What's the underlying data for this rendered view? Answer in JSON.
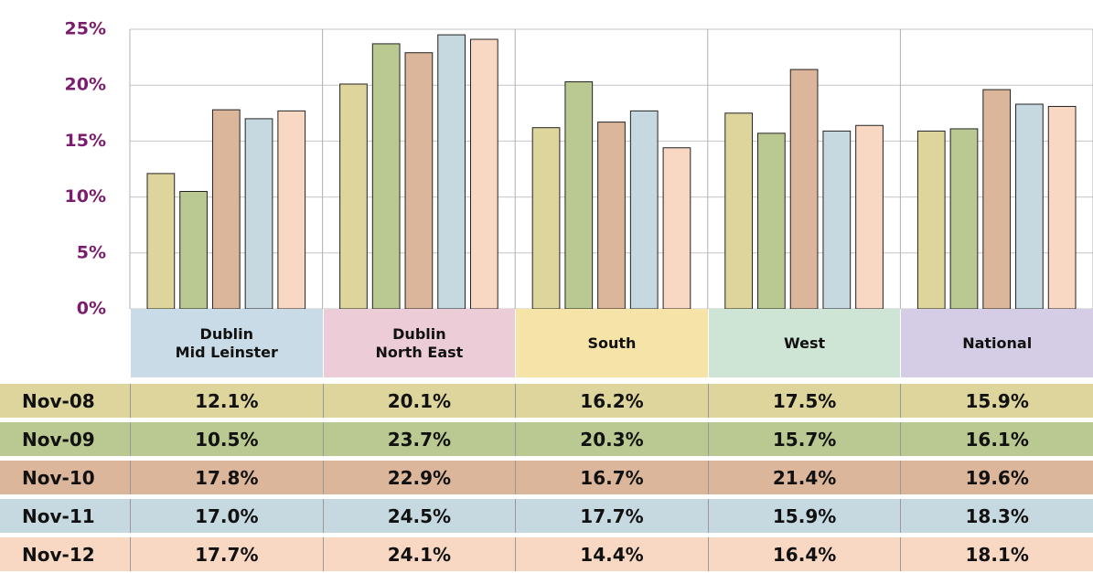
{
  "chart_data": {
    "type": "bar",
    "categories": [
      "Dublin\nMid Leinster",
      "Dublin\nNorth East",
      "South",
      "West",
      "National"
    ],
    "category_colors": [
      "#c9dbe6",
      "#ecccd6",
      "#f5e3a8",
      "#cee4d4",
      "#d5cde5"
    ],
    "series": [
      {
        "name": "Nov-08",
        "color": "#ddd59b",
        "values": [
          12.1,
          20.1,
          16.2,
          17.5,
          15.9
        ],
        "value_labels": [
          "12.1%",
          "20.1%",
          "16.2%",
          "17.5%",
          "15.9%"
        ]
      },
      {
        "name": "Nov-09",
        "color": "#bac991",
        "values": [
          10.5,
          23.7,
          20.3,
          15.7,
          16.1
        ],
        "value_labels": [
          "10.5%",
          "23.7%",
          "20.3%",
          "15.7%",
          "16.1%"
        ]
      },
      {
        "name": "Nov-10",
        "color": "#dcb69b",
        "values": [
          17.8,
          22.9,
          16.7,
          21.4,
          19.6
        ],
        "value_labels": [
          "17.8%",
          "22.9%",
          "16.7%",
          "21.4%",
          "19.6%"
        ]
      },
      {
        "name": "Nov-11",
        "color": "#c6d9e1",
        "values": [
          17.0,
          24.5,
          17.7,
          15.9,
          18.3
        ],
        "value_labels": [
          "17.0%",
          "24.5%",
          "17.7%",
          "15.9%",
          "18.3%"
        ]
      },
      {
        "name": "Nov-12",
        "color": "#f8d8c3",
        "values": [
          17.7,
          24.1,
          14.4,
          16.4,
          18.1
        ],
        "value_labels": [
          "17.7%",
          "24.1%",
          "14.4%",
          "16.4%",
          "18.1%"
        ]
      }
    ],
    "ylim": [
      0,
      25
    ],
    "yticks": [
      {
        "value": 0,
        "label": "0%"
      },
      {
        "value": 5,
        "label": "5%"
      },
      {
        "value": 10,
        "label": "10%"
      },
      {
        "value": 15,
        "label": "15%"
      },
      {
        "value": 20,
        "label": "20%"
      },
      {
        "value": 25,
        "label": "25%"
      }
    ],
    "grid": true
  }
}
